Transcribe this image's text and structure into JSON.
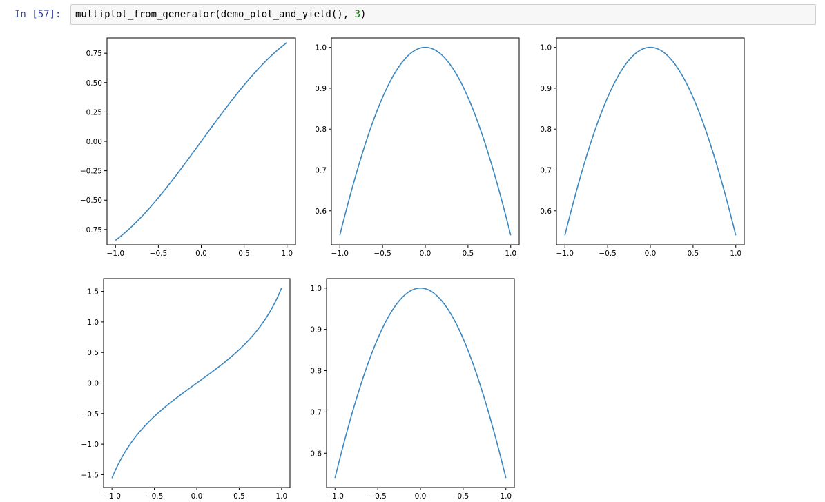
{
  "cell": {
    "prompt": "In [57]:",
    "code_prefix": "multiplot_from_generator(demo_plot_and_yield(), ",
    "code_number": "3",
    "code_suffix": ")"
  },
  "colors": {
    "line": "#3a86bf",
    "prompt": "#303f9f",
    "number": "#008000"
  },
  "chart_data": [
    {
      "type": "line",
      "function": "sin",
      "xlim": [
        -1.0,
        1.0
      ],
      "ylim": [
        -0.88,
        0.88
      ],
      "xticks": [
        -1.0,
        -0.5,
        0.0,
        0.5,
        1.0
      ],
      "xtick_labels": [
        "−1.0",
        "−0.5",
        "0.0",
        "0.5",
        "1.0"
      ],
      "yticks": [
        -0.75,
        -0.5,
        -0.25,
        0.0,
        0.25,
        0.5,
        0.75
      ],
      "ytick_labels": [
        "−0.75",
        "−0.50",
        "−0.25",
        "0.00",
        "0.25",
        "0.50",
        "0.75"
      ],
      "x": [
        -1.0,
        -0.75,
        -0.5,
        -0.25,
        0.0,
        0.25,
        0.5,
        0.75,
        1.0
      ],
      "y": [
        -0.841,
        -0.682,
        -0.479,
        -0.247,
        0.0,
        0.247,
        0.479,
        0.682,
        0.841
      ]
    },
    {
      "type": "line",
      "function": "cos",
      "xlim": [
        -1.0,
        1.0
      ],
      "ylim": [
        0.517,
        1.023
      ],
      "xticks": [
        -1.0,
        -0.5,
        0.0,
        0.5,
        1.0
      ],
      "xtick_labels": [
        "−1.0",
        "−0.5",
        "0.0",
        "0.5",
        "1.0"
      ],
      "yticks": [
        0.6,
        0.7,
        0.8,
        0.9,
        1.0
      ],
      "ytick_labels": [
        "0.6",
        "0.7",
        "0.8",
        "0.9",
        "1.0"
      ],
      "x": [
        -1.0,
        -0.75,
        -0.5,
        -0.25,
        0.0,
        0.25,
        0.5,
        0.75,
        1.0
      ],
      "y": [
        0.54,
        0.732,
        0.878,
        0.969,
        1.0,
        0.969,
        0.878,
        0.732,
        0.54
      ]
    },
    {
      "type": "line",
      "function": "cos",
      "xlim": [
        -1.0,
        1.0
      ],
      "ylim": [
        0.517,
        1.023
      ],
      "xticks": [
        -1.0,
        -0.5,
        0.0,
        0.5,
        1.0
      ],
      "xtick_labels": [
        "−1.0",
        "−0.5",
        "0.0",
        "0.5",
        "1.0"
      ],
      "yticks": [
        0.6,
        0.7,
        0.8,
        0.9,
        1.0
      ],
      "ytick_labels": [
        "0.6",
        "0.7",
        "0.8",
        "0.9",
        "1.0"
      ],
      "x": [
        -1.0,
        -0.75,
        -0.5,
        -0.25,
        0.0,
        0.25,
        0.5,
        0.75,
        1.0
      ],
      "y": [
        0.54,
        0.732,
        0.878,
        0.969,
        1.0,
        0.969,
        0.878,
        0.732,
        0.54
      ]
    },
    {
      "type": "line",
      "function": "tan",
      "xlim": [
        -1.0,
        1.0
      ],
      "ylim": [
        -1.71,
        1.71
      ],
      "xticks": [
        -1.0,
        -0.5,
        0.0,
        0.5,
        1.0
      ],
      "xtick_labels": [
        "−1.0",
        "−0.5",
        "0.0",
        "0.5",
        "1.0"
      ],
      "yticks": [
        -1.5,
        -1.0,
        -0.5,
        0.0,
        0.5,
        1.0,
        1.5
      ],
      "ytick_labels": [
        "−1.5",
        "−1.0",
        "−0.5",
        "0.0",
        "0.5",
        "1.0",
        "1.5"
      ],
      "x": [
        -1.0,
        -0.75,
        -0.5,
        -0.25,
        0.0,
        0.25,
        0.5,
        0.75,
        1.0
      ],
      "y": [
        -1.557,
        -0.932,
        -0.546,
        -0.255,
        0.0,
        0.255,
        0.546,
        0.932,
        1.557
      ]
    },
    {
      "type": "line",
      "function": "cos",
      "xlim": [
        -1.0,
        1.0
      ],
      "ylim": [
        0.517,
        1.023
      ],
      "xticks": [
        -1.0,
        -0.5,
        0.0,
        0.5,
        1.0
      ],
      "xtick_labels": [
        "−1.0",
        "−0.5",
        "0.0",
        "0.5",
        "1.0"
      ],
      "yticks": [
        0.6,
        0.7,
        0.8,
        0.9,
        1.0
      ],
      "ytick_labels": [
        "0.6",
        "0.7",
        "0.8",
        "0.9",
        "1.0"
      ],
      "x": [
        -1.0,
        -0.75,
        -0.5,
        -0.25,
        0.0,
        0.25,
        0.5,
        0.75,
        1.0
      ],
      "y": [
        0.54,
        0.732,
        0.878,
        0.969,
        1.0,
        0.969,
        0.878,
        0.732,
        0.54
      ]
    }
  ]
}
